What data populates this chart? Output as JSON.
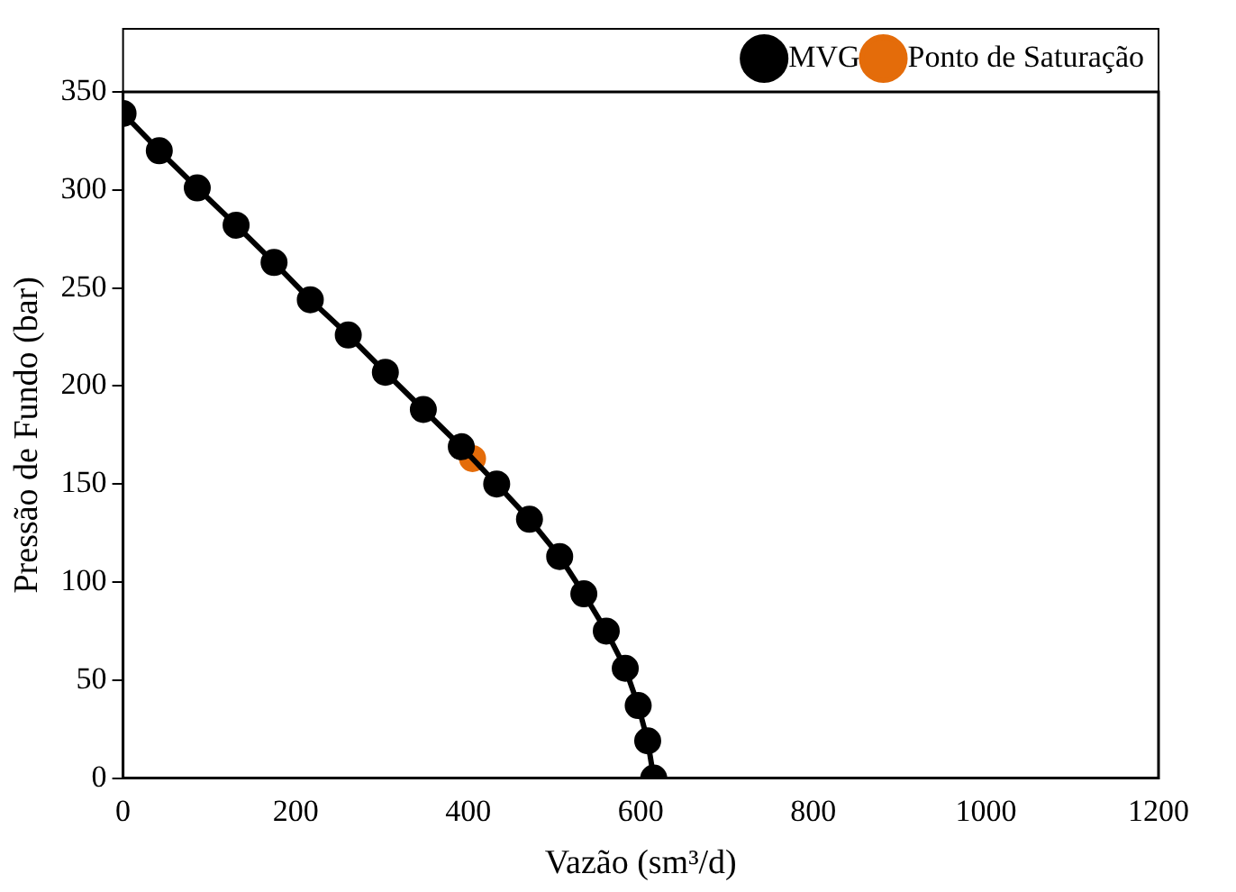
{
  "chart_data": {
    "type": "line",
    "xlabel": "Vazão (sm³/d)",
    "ylabel": "Pressão de Fundo (bar)",
    "xlim": [
      0,
      1200
    ],
    "xticks": [
      0,
      200,
      400,
      600,
      800,
      1000,
      1200
    ],
    "ylim": [
      0,
      350
    ],
    "yticks": [
      0,
      50,
      100,
      150,
      200,
      250,
      300,
      350
    ],
    "grid": false,
    "legend": "top right",
    "marker": "circle",
    "line_style": "solid",
    "series": [
      {
        "name": "MVG",
        "color": "#000000",
        "x": [
          0,
          42,
          86,
          131,
          175,
          217,
          261,
          304,
          348,
          392,
          433,
          471,
          506,
          534,
          560,
          582,
          597,
          608,
          615
        ],
        "values": [
          339,
          320,
          301,
          282,
          263,
          244,
          226,
          207,
          188,
          169,
          150,
          132,
          113,
          94,
          75,
          56,
          37,
          19,
          0
        ]
      },
      {
        "name": "Ponto de Saturação",
        "color": "#e46c0a",
        "x": [
          405
        ],
        "values": [
          163
        ]
      }
    ]
  }
}
